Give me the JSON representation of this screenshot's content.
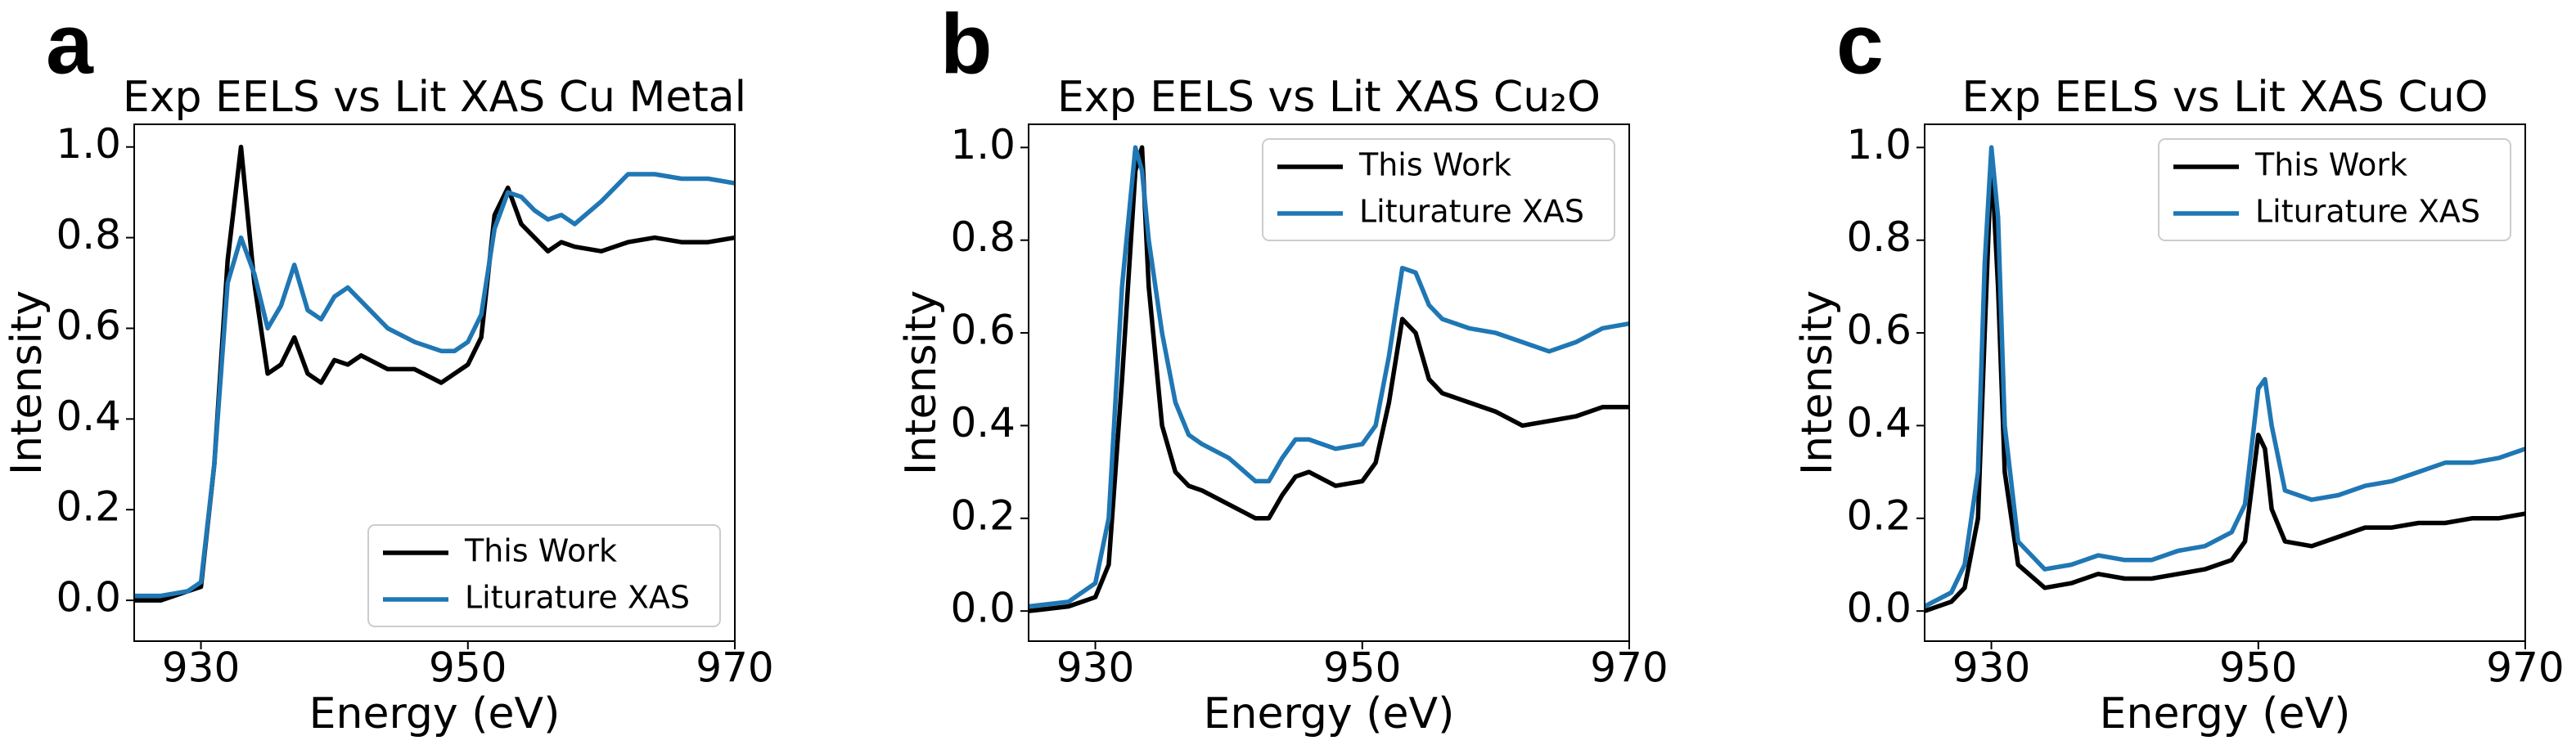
{
  "chart_data": [
    {
      "type": "line",
      "panel_label": "a",
      "title": "Exp EELS vs Lit XAS Cu Metal",
      "xlabel": "Energy (eV)",
      "ylabel": "Intensity",
      "x": [
        925,
        927,
        929,
        930,
        931,
        932,
        933,
        934,
        935,
        936,
        937,
        938,
        939,
        940,
        941,
        942,
        944,
        946,
        948,
        949,
        950,
        951,
        952,
        953,
        954,
        955,
        956,
        957,
        958,
        960,
        962,
        964,
        966,
        968,
        970
      ],
      "series": [
        {
          "name": "This Work",
          "color": "#000000",
          "values": [
            0,
            0,
            0.02,
            0.03,
            0.3,
            0.75,
            1.0,
            0.7,
            0.5,
            0.52,
            0.58,
            0.5,
            0.48,
            0.53,
            0.52,
            0.54,
            0.51,
            0.51,
            0.48,
            0.5,
            0.52,
            0.58,
            0.85,
            0.91,
            0.83,
            0.8,
            0.77,
            0.79,
            0.78,
            0.77,
            0.79,
            0.8,
            0.79,
            0.79,
            0.8
          ]
        },
        {
          "name": "Liturature XAS",
          "color": "#1f77b4",
          "values": [
            0.01,
            0.01,
            0.02,
            0.04,
            0.3,
            0.7,
            0.8,
            0.72,
            0.6,
            0.65,
            0.74,
            0.64,
            0.62,
            0.67,
            0.69,
            0.66,
            0.6,
            0.57,
            0.55,
            0.55,
            0.57,
            0.63,
            0.82,
            0.9,
            0.89,
            0.86,
            0.84,
            0.85,
            0.83,
            0.88,
            0.94,
            0.94,
            0.93,
            0.93,
            0.92
          ]
        }
      ],
      "xlim": [
        925,
        970
      ],
      "xticks": [
        930,
        950,
        970
      ],
      "ylim": [
        -0.09,
        1.05
      ],
      "yticks": [
        {
          "value": 0,
          "label": "0.0"
        },
        0.2,
        0.4,
        0.6,
        0.8,
        {
          "value": 1,
          "label": "1.0"
        }
      ],
      "legend": "lower right"
    },
    {
      "type": "line",
      "panel_label": "b",
      "title": "Exp EELS vs Lit XAS Cu₂O",
      "xlabel": "Energy (eV)",
      "ylabel": "Intensity",
      "x": [
        925,
        928,
        930,
        931,
        932,
        933,
        933.5,
        934,
        935,
        936,
        937,
        938,
        940,
        942,
        943,
        944,
        945,
        946,
        948,
        950,
        951,
        952,
        953,
        954,
        955,
        956,
        958,
        960,
        962,
        964,
        966,
        968,
        970
      ],
      "series": [
        {
          "name": "This Work",
          "color": "#000000",
          "values": [
            0,
            0.01,
            0.03,
            0.1,
            0.5,
            0.95,
            1.0,
            0.7,
            0.4,
            0.3,
            0.27,
            0.26,
            0.23,
            0.2,
            0.2,
            0.25,
            0.29,
            0.3,
            0.27,
            0.28,
            0.32,
            0.45,
            0.63,
            0.6,
            0.5,
            0.47,
            0.45,
            0.43,
            0.4,
            0.41,
            0.42,
            0.44,
            0.44
          ]
        },
        {
          "name": "Liturature XAS",
          "color": "#1f77b4",
          "values": [
            0.01,
            0.02,
            0.06,
            0.2,
            0.7,
            1.0,
            0.95,
            0.8,
            0.6,
            0.45,
            0.38,
            0.36,
            0.33,
            0.28,
            0.28,
            0.33,
            0.37,
            0.37,
            0.35,
            0.36,
            0.4,
            0.55,
            0.74,
            0.73,
            0.66,
            0.63,
            0.61,
            0.6,
            0.58,
            0.56,
            0.58,
            0.61,
            0.62
          ]
        }
      ],
      "xlim": [
        925,
        970
      ],
      "xticks": [
        930,
        950,
        970
      ],
      "ylim": [
        -0.065,
        1.05
      ],
      "yticks": [
        {
          "value": 0,
          "label": "0.0"
        },
        0.2,
        0.4,
        0.6,
        0.8,
        {
          "value": 1,
          "label": "1.0"
        }
      ],
      "legend": "upper right"
    },
    {
      "type": "line",
      "panel_label": "c",
      "title": "Exp EELS vs Lit XAS CuO",
      "xlabel": "Energy (eV)",
      "ylabel": "Intensity",
      "x": [
        925,
        927,
        928,
        929,
        929.5,
        930,
        930.5,
        931,
        932,
        934,
        936,
        938,
        940,
        942,
        944,
        946,
        948,
        949,
        950,
        950.5,
        951,
        952,
        954,
        956,
        958,
        960,
        962,
        964,
        966,
        968,
        970
      ],
      "series": [
        {
          "name": "This Work",
          "color": "#000000",
          "values": [
            0,
            0.02,
            0.05,
            0.2,
            0.6,
            0.98,
            0.7,
            0.3,
            0.1,
            0.05,
            0.06,
            0.08,
            0.07,
            0.07,
            0.08,
            0.09,
            0.11,
            0.15,
            0.38,
            0.35,
            0.22,
            0.15,
            0.14,
            0.16,
            0.18,
            0.18,
            0.19,
            0.19,
            0.2,
            0.2,
            0.21
          ]
        },
        {
          "name": "Liturature XAS",
          "color": "#1f77b4",
          "values": [
            0.01,
            0.04,
            0.1,
            0.3,
            0.75,
            1.0,
            0.85,
            0.4,
            0.15,
            0.09,
            0.1,
            0.12,
            0.11,
            0.11,
            0.13,
            0.14,
            0.17,
            0.23,
            0.48,
            0.5,
            0.4,
            0.26,
            0.24,
            0.25,
            0.27,
            0.28,
            0.3,
            0.32,
            0.32,
            0.33,
            0.35
          ]
        }
      ],
      "xlim": [
        925,
        970
      ],
      "xticks": [
        930,
        950,
        970
      ],
      "ylim": [
        -0.065,
        1.05
      ],
      "yticks": [
        {
          "value": 0,
          "label": "0.0"
        },
        0.2,
        0.4,
        0.6,
        0.8,
        {
          "value": 1,
          "label": "1.0"
        }
      ],
      "legend": "upper right"
    }
  ]
}
